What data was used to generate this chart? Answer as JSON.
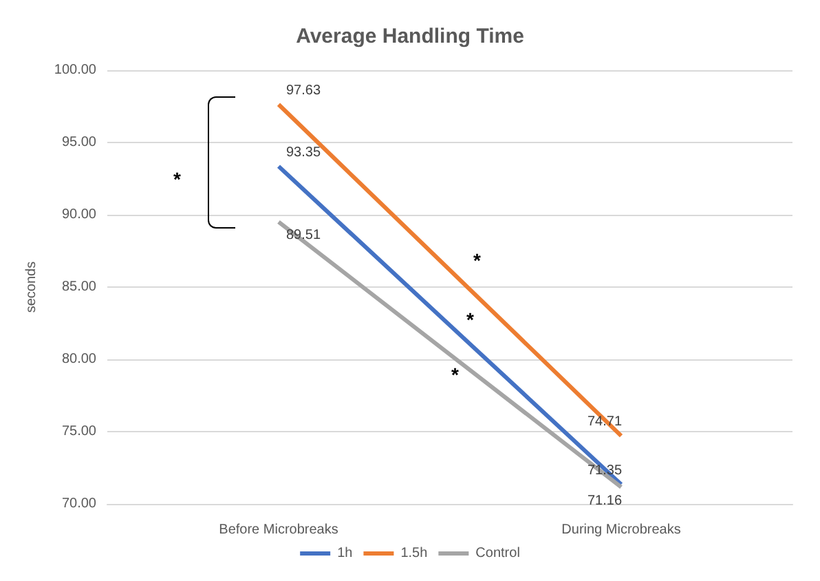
{
  "chart_data": {
    "type": "line",
    "title": "Average Handling Time",
    "ylabel": "seconds",
    "categories": [
      "Before Microbreaks",
      "During Microbreaks"
    ],
    "series": [
      {
        "name": "1h",
        "color": "#4472c4",
        "values": [
          93.35,
          71.35
        ]
      },
      {
        "name": "1.5h",
        "color": "#ed7d31",
        "values": [
          97.63,
          74.71
        ]
      },
      {
        "name": "Control",
        "color": "#a5a5a5",
        "values": [
          89.51,
          71.16
        ]
      }
    ],
    "ylim": [
      70,
      100
    ],
    "yticks": [
      {
        "value": 70,
        "label": "70.00"
      },
      {
        "value": 75,
        "label": "75.00"
      },
      {
        "value": 80,
        "label": "80.00"
      },
      {
        "value": 85,
        "label": "85.00"
      },
      {
        "value": 90,
        "label": "90.00"
      },
      {
        "value": 95,
        "label": "95.00"
      },
      {
        "value": 100,
        "label": "100.00"
      }
    ],
    "grid": "y",
    "legend": "bottom",
    "marker": "none",
    "line_style": "solid",
    "data_labels": true,
    "annotations": [
      "*",
      "*",
      "*",
      "*"
    ]
  }
}
